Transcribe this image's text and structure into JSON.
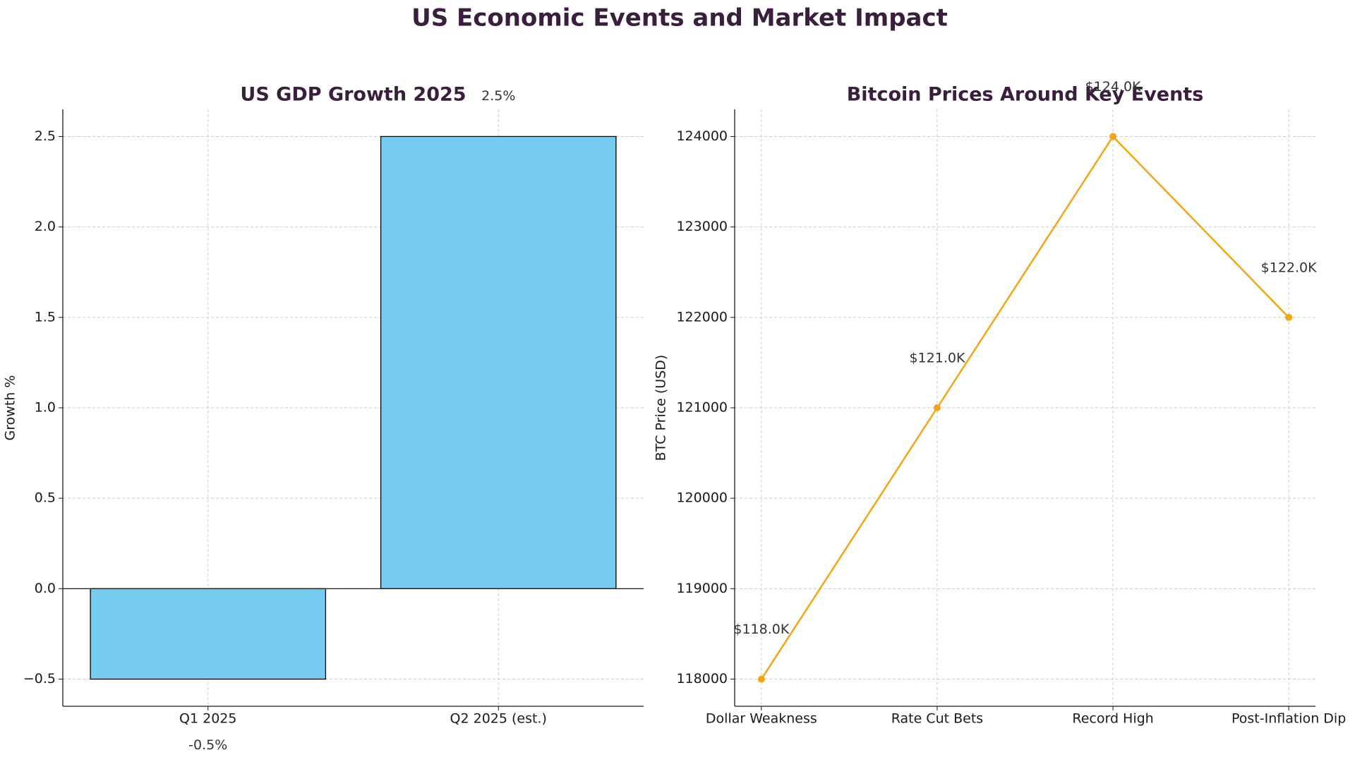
{
  "title": "US Economic Events and Market Impact",
  "chart_data": [
    {
      "type": "bar",
      "title": "US GDP Growth 2025",
      "ylabel": "Growth %",
      "categories": [
        "Q1 2025",
        "Q2 2025 (est.)"
      ],
      "values": [
        -0.5,
        2.5
      ],
      "value_labels": [
        "-0.5%",
        "2.5%"
      ],
      "color": "#76ccf0",
      "edgecolor": "#000000",
      "ylim": [
        -0.65,
        2.65
      ],
      "yticks": [
        {
          "value": -0.5,
          "label": "−0.5"
        },
        {
          "value": 0,
          "label": "0.0"
        },
        0.5,
        {
          "value": 1,
          "label": "1.0"
        },
        1.5,
        {
          "value": 2,
          "label": "2.0"
        },
        2.5
      ],
      "grid": true
    },
    {
      "type": "line",
      "title": "Bitcoin Prices Around Key Events",
      "ylabel": "BTC Price (USD)",
      "categories": [
        "Dollar Weakness",
        "Rate Cut Bets",
        "Record High",
        "Post-Inflation Dip"
      ],
      "values": [
        118000,
        121000,
        124000,
        122000
      ],
      "value_labels": [
        "$118.0K",
        "$121.0K",
        "$124.0K",
        "$122.0K"
      ],
      "color": "#f2a516",
      "ylim": [
        117700,
        124300
      ],
      "yticks": [
        118000,
        119000,
        120000,
        121000,
        122000,
        123000,
        124000
      ],
      "grid": true
    }
  ]
}
